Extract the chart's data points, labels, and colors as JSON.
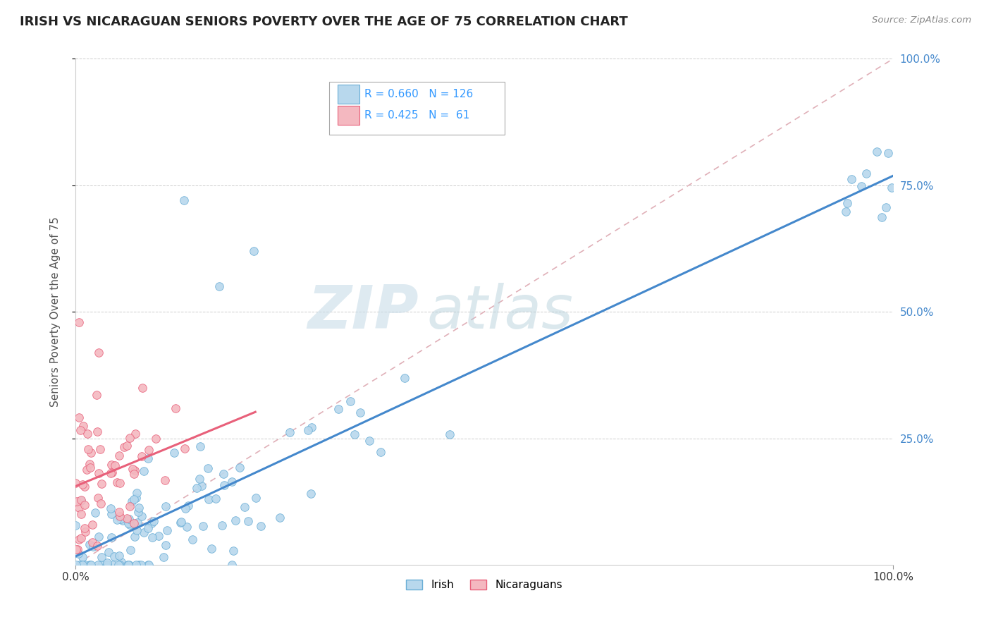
{
  "title": "IRISH VS NICARAGUAN SENIORS POVERTY OVER THE AGE OF 75 CORRELATION CHART",
  "source": "Source: ZipAtlas.com",
  "ylabel": "Seniors Poverty Over the Age of 75",
  "irish_R": 0.66,
  "irish_N": 126,
  "nicaraguan_R": 0.425,
  "nicaraguan_N": 61,
  "irish_color": "#b8d8ed",
  "irish_edge_color": "#6aaed6",
  "nicaraguan_color": "#f4b8c0",
  "nicaraguan_edge_color": "#e8607a",
  "irish_line_color": "#4488cc",
  "nicaraguan_line_color": "#e8607a",
  "diagonal_color": "#e0b0b8",
  "background_color": "#ffffff",
  "ytick_labels": [
    "25.0%",
    "50.0%",
    "75.0%",
    "100.0%"
  ],
  "ytick_positions": [
    0.25,
    0.5,
    0.75,
    1.0
  ],
  "legend_color": "#3399ff",
  "watermark_zip_color": "#c8dce8",
  "watermark_atlas_color": "#b0ccd8"
}
